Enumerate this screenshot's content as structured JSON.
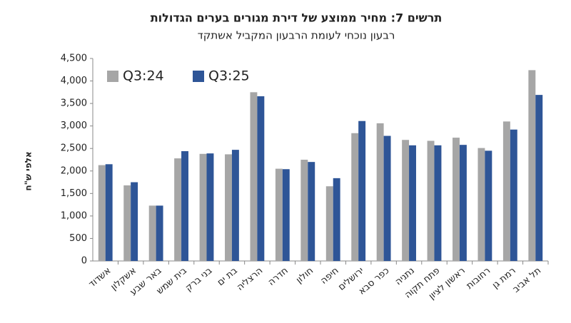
{
  "chart_data": {
    "type": "bar",
    "title": "תרשים 7: מחיר ממוצע של דירת מגורים בערים הגדולות",
    "subtitle": "רבעון נוכחי לעומת הרבעון המקביל אשתקד",
    "y_label": "אלפי ש\"ח",
    "categories": [
      "אשדוד",
      "אשקלון",
      "באר שבע",
      "בית שמש",
      "בני ברק",
      "בת ים",
      "הרצליה",
      "חדרה",
      "חולון",
      "חיפה",
      "ירושלים",
      "כפר סבא",
      "נתניה",
      "פתח תקוה",
      "ראשון לציון",
      "רחובות",
      "רמת גן",
      "תל אביב"
    ],
    "series": [
      {
        "name": "Q3:24",
        "color": "#a6a6a6",
        "values": [
          2130,
          1680,
          1230,
          2280,
          2380,
          2370,
          3750,
          2050,
          2250,
          1660,
          2840,
          3060,
          2690,
          2670,
          2740,
          2510,
          3100,
          4240
        ]
      },
      {
        "name": "Q3:25",
        "color": "#2e5597",
        "values": [
          2150,
          1750,
          1230,
          2440,
          2390,
          2470,
          3660,
          2040,
          2200,
          1840,
          3110,
          2780,
          2570,
          2570,
          2580,
          2450,
          2920,
          3690
        ]
      }
    ],
    "ylim": [
      0,
      4500
    ],
    "yticks": [
      0,
      500,
      {
        "value": 1000,
        "label": "1,000"
      },
      {
        "value": 1500,
        "label": "1,500"
      },
      {
        "value": 2000,
        "label": "2,000"
      },
      {
        "value": 2500,
        "label": "2,500"
      },
      {
        "value": 3000,
        "label": "3,000"
      },
      {
        "value": 3500,
        "label": "3,500"
      },
      {
        "value": 4000,
        "label": "4,000"
      },
      {
        "value": 4500,
        "label": "4,500"
      }
    ],
    "legend": "top-left"
  }
}
